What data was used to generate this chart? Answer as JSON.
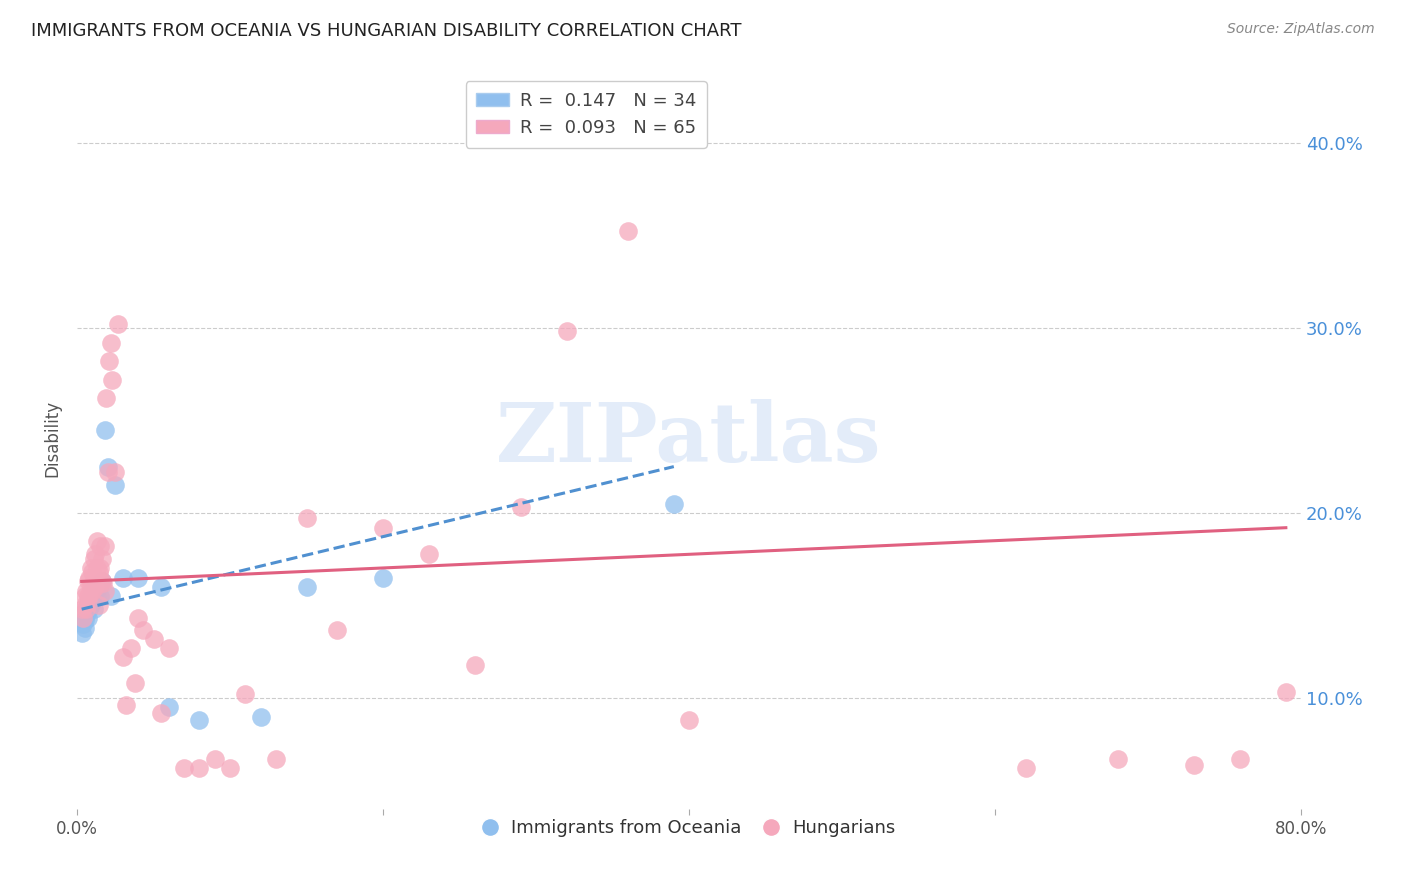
{
  "title": "IMMIGRANTS FROM OCEANIA VS HUNGARIAN DISABILITY CORRELATION CHART",
  "source": "Source: ZipAtlas.com",
  "ylabel": "Disability",
  "right_yticks": [
    "40.0%",
    "30.0%",
    "20.0%",
    "10.0%"
  ],
  "right_ytick_vals": [
    0.4,
    0.3,
    0.2,
    0.1
  ],
  "xlim": [
    0.0,
    0.8
  ],
  "ylim": [
    0.04,
    0.44
  ],
  "legend_blue_r": "0.147",
  "legend_blue_n": "34",
  "legend_pink_r": "0.093",
  "legend_pink_n": "65",
  "blue_color": "#90bfee",
  "pink_color": "#f5a8bc",
  "trend_blue_color": "#5090d0",
  "trend_pink_color": "#e06080",
  "grid_color": "#cccccc",
  "background_color": "#ffffff",
  "watermark": "ZIPatlas",
  "blue_trend_x": [
    0.003,
    0.39
  ],
  "blue_trend_y": [
    0.148,
    0.225
  ],
  "pink_trend_x": [
    0.003,
    0.79
  ],
  "pink_trend_y": [
    0.163,
    0.192
  ],
  "blue_scatter_x": [
    0.003,
    0.004,
    0.005,
    0.005,
    0.006,
    0.006,
    0.007,
    0.007,
    0.008,
    0.008,
    0.009,
    0.009,
    0.01,
    0.01,
    0.011,
    0.011,
    0.012,
    0.013,
    0.014,
    0.015,
    0.016,
    0.018,
    0.02,
    0.022,
    0.025,
    0.03,
    0.04,
    0.055,
    0.06,
    0.08,
    0.12,
    0.15,
    0.2,
    0.39
  ],
  "blue_scatter_y": [
    0.135,
    0.14,
    0.138,
    0.142,
    0.145,
    0.148,
    0.143,
    0.15,
    0.148,
    0.153,
    0.15,
    0.155,
    0.152,
    0.158,
    0.148,
    0.155,
    0.16,
    0.155,
    0.16,
    0.155,
    0.163,
    0.245,
    0.225,
    0.155,
    0.215,
    0.165,
    0.165,
    0.16,
    0.095,
    0.088,
    0.09,
    0.16,
    0.165,
    0.205
  ],
  "pink_scatter_x": [
    0.003,
    0.004,
    0.005,
    0.005,
    0.006,
    0.006,
    0.007,
    0.007,
    0.008,
    0.008,
    0.009,
    0.009,
    0.01,
    0.01,
    0.011,
    0.011,
    0.012,
    0.012,
    0.013,
    0.013,
    0.014,
    0.014,
    0.015,
    0.015,
    0.016,
    0.016,
    0.017,
    0.018,
    0.018,
    0.019,
    0.02,
    0.021,
    0.022,
    0.023,
    0.025,
    0.027,
    0.03,
    0.032,
    0.035,
    0.038,
    0.04,
    0.043,
    0.05,
    0.055,
    0.06,
    0.07,
    0.08,
    0.09,
    0.1,
    0.11,
    0.13,
    0.15,
    0.17,
    0.2,
    0.23,
    0.26,
    0.29,
    0.32,
    0.36,
    0.4,
    0.62,
    0.68,
    0.73,
    0.76,
    0.79
  ],
  "pink_scatter_y": [
    0.148,
    0.143,
    0.15,
    0.155,
    0.148,
    0.158,
    0.155,
    0.163,
    0.155,
    0.165,
    0.16,
    0.17,
    0.158,
    0.168,
    0.165,
    0.175,
    0.16,
    0.178,
    0.17,
    0.185,
    0.15,
    0.168,
    0.17,
    0.182,
    0.163,
    0.175,
    0.162,
    0.158,
    0.182,
    0.262,
    0.222,
    0.282,
    0.292,
    0.272,
    0.222,
    0.302,
    0.122,
    0.096,
    0.127,
    0.108,
    0.143,
    0.137,
    0.132,
    0.092,
    0.127,
    0.062,
    0.062,
    0.067,
    0.062,
    0.102,
    0.067,
    0.197,
    0.137,
    0.192,
    0.178,
    0.118,
    0.203,
    0.298,
    0.352,
    0.088,
    0.062,
    0.067,
    0.064,
    0.067,
    0.103
  ]
}
